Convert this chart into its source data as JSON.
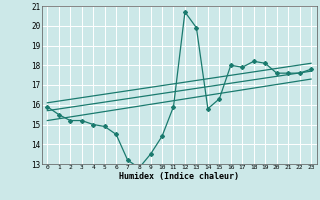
{
  "title": "",
  "xlabel": "Humidex (Indice chaleur)",
  "ylabel": "",
  "xlim": [
    -0.5,
    23.5
  ],
  "ylim": [
    13,
    21
  ],
  "xticks": [
    0,
    1,
    2,
    3,
    4,
    5,
    6,
    7,
    8,
    9,
    10,
    11,
    12,
    13,
    14,
    15,
    16,
    17,
    18,
    19,
    20,
    21,
    22,
    23
  ],
  "yticks": [
    13,
    14,
    15,
    16,
    17,
    18,
    19,
    20,
    21
  ],
  "background_color": "#cce8e8",
  "line_color": "#1a7a6e",
  "grid_color": "#ffffff",
  "series": [
    {
      "x": [
        0,
        1,
        2,
        3,
        4,
        5,
        6,
        7,
        8,
        9,
        10,
        11,
        12,
        13,
        14,
        15,
        16,
        17,
        18,
        19,
        20,
        21,
        22,
        23
      ],
      "y": [
        15.9,
        15.5,
        15.2,
        15.2,
        15.0,
        14.9,
        14.5,
        13.2,
        12.8,
        13.5,
        14.4,
        15.9,
        20.7,
        19.9,
        15.8,
        16.3,
        18.0,
        17.9,
        18.2,
        18.1,
        17.6,
        17.6,
        17.6,
        17.8
      ],
      "marker": "D",
      "markersize": 2.0,
      "linewidth": 0.9
    },
    {
      "x": [
        0,
        23
      ],
      "y": [
        15.2,
        17.3
      ],
      "marker": null,
      "linewidth": 0.9
    },
    {
      "x": [
        0,
        23
      ],
      "y": [
        15.7,
        17.7
      ],
      "marker": null,
      "linewidth": 0.9
    },
    {
      "x": [
        0,
        23
      ],
      "y": [
        16.1,
        18.1
      ],
      "marker": null,
      "linewidth": 0.9
    }
  ]
}
